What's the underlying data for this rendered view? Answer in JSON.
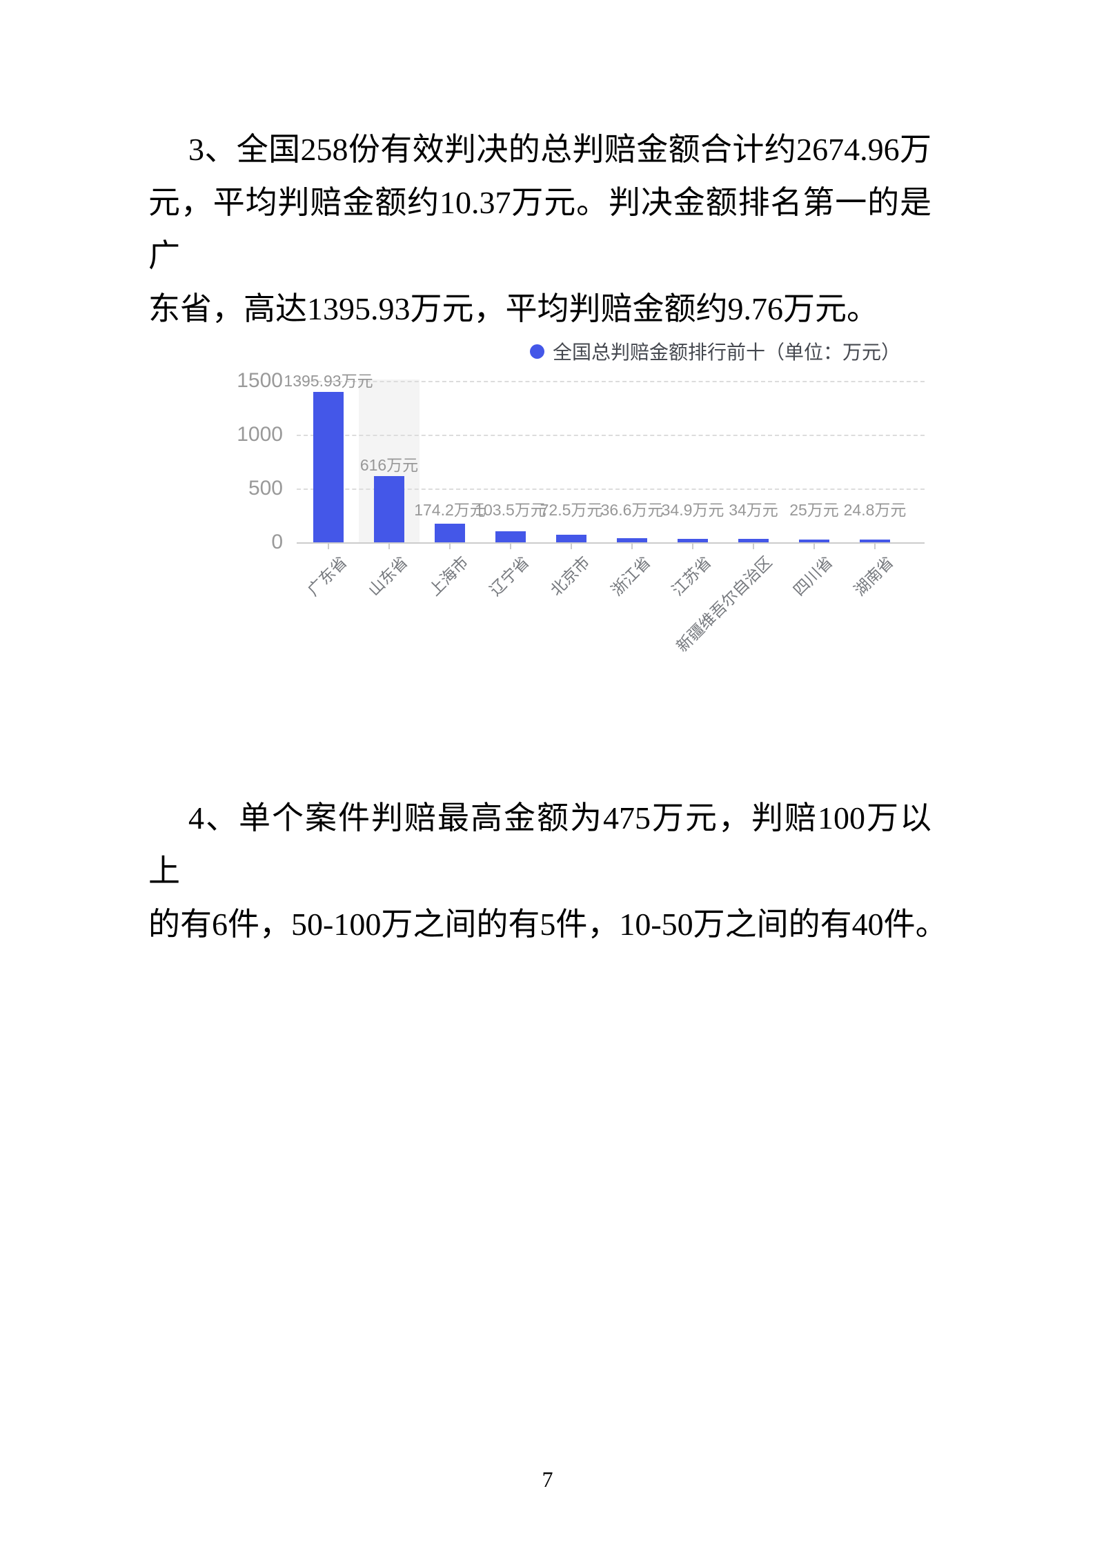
{
  "page": {
    "number": "7"
  },
  "paragraphs": {
    "p3": {
      "lines": [
        "3、全国258份有效判决的总判赔金额合计约2674.96万",
        "元，平均判赔金额约10.37万元。判决金额排名第一的是广",
        "东省，高达1395.93万元，平均判赔金额约9.76万元。"
      ]
    },
    "p4": {
      "lines": [
        "4、单个案件判赔最高金额为475万元，判赔100万以上",
        "的有6件，50-100万之间的有5件，10-50万之间的有40件。"
      ]
    }
  },
  "chart_data": {
    "type": "bar",
    "title": "全国总判赔金额排行前十（单位：万元）",
    "legend": [
      "全国总判赔金额排行前十（单位：万元）"
    ],
    "legend_position": "top",
    "categories": [
      "广东省",
      "山东省",
      "上海市",
      "辽宁省",
      "北京市",
      "浙江省",
      "江苏省",
      "新疆维吾尔自治区",
      "四川省",
      "湖南省"
    ],
    "values": [
      1395.93,
      616,
      174.2,
      103.5,
      72.5,
      36.6,
      34.9,
      34,
      25,
      24.8
    ],
    "value_labels": [
      "1395.93万元",
      "616万元",
      "174.2万元",
      "103.5万元",
      "72.5万元",
      "36.6万元",
      "34.9万元",
      "34万元",
      "25万元",
      "24.8万元"
    ],
    "xlabel": "",
    "ylabel": "",
    "yticks": [
      0,
      500,
      1000,
      1500
    ],
    "ylim": [
      0,
      1500
    ],
    "grid": "horizontal-dashed",
    "xlabel_rotation_deg": 45,
    "bar_color": "#4457e8",
    "highlight_band_index": 1,
    "highlight_band_color": "#f4f4f4",
    "value_label_color": "#979797",
    "axis_tick_label_color": "#999999",
    "category_label_color": "#76797e"
  }
}
